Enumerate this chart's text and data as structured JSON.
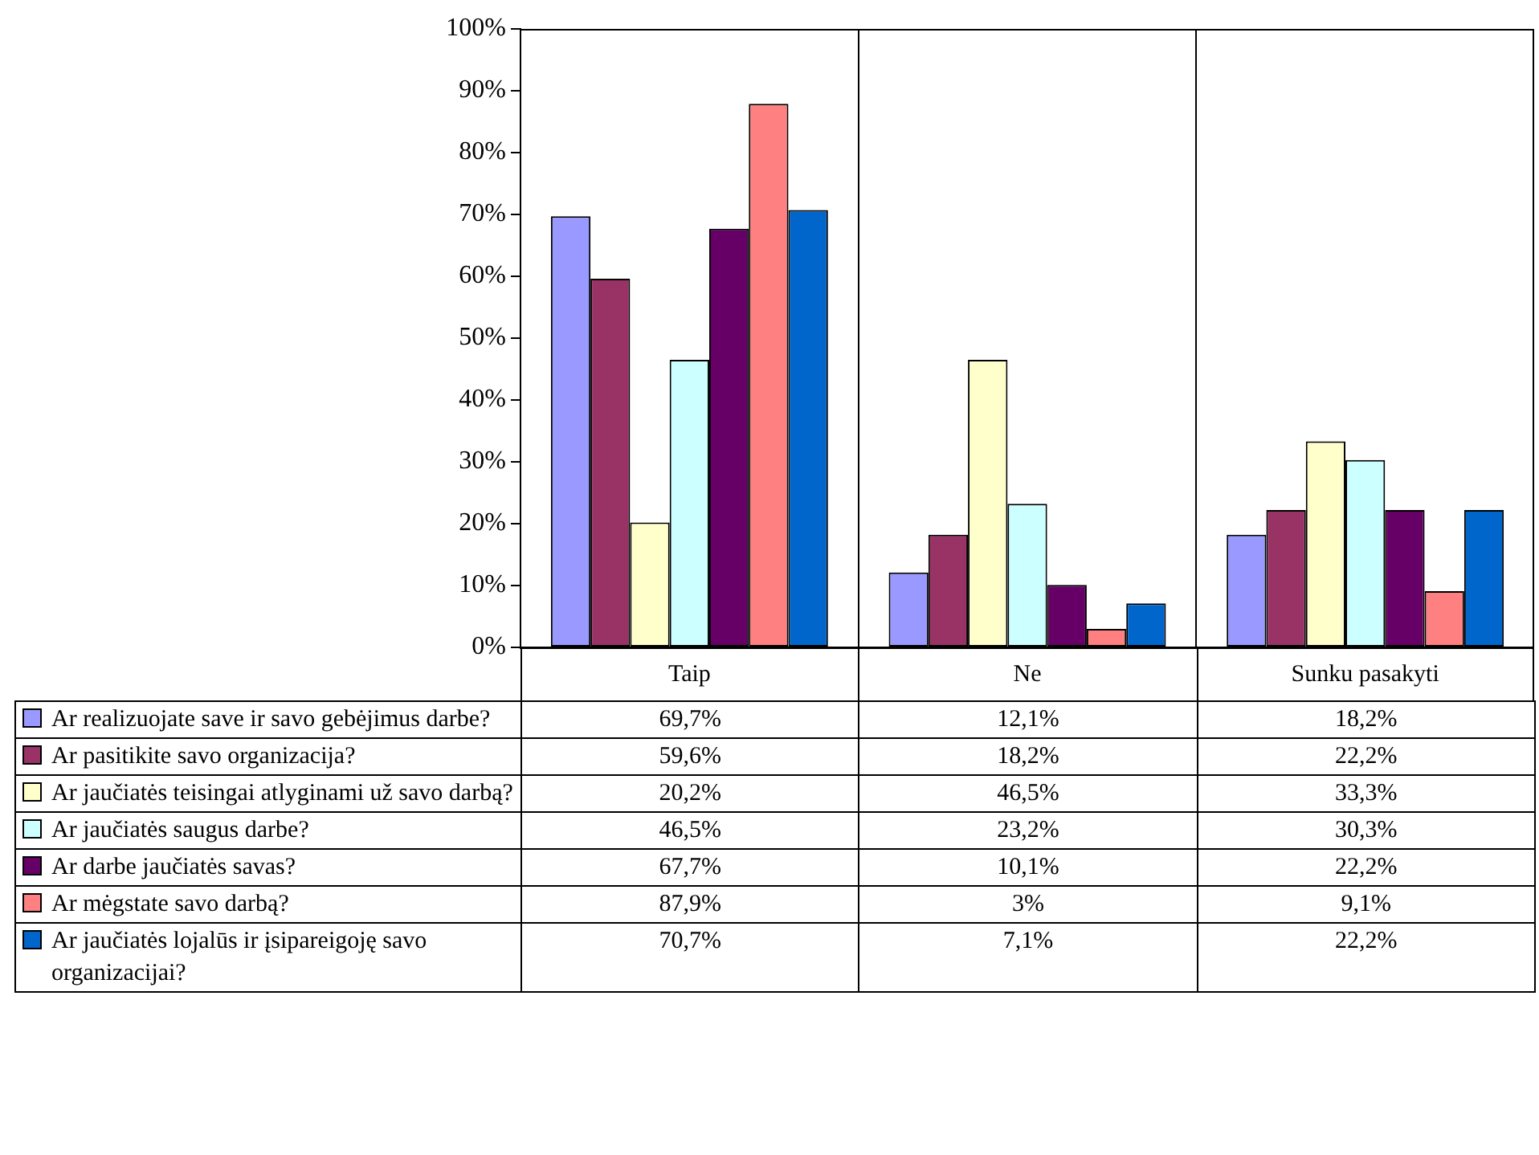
{
  "chart_data": {
    "type": "bar",
    "categories": [
      "Taip",
      "Ne",
      "Sunku pasakyti"
    ],
    "series": [
      {
        "name": "Ar realizuojate save ir savo gebėjimus darbe?",
        "color": "#9999ff",
        "values": [
          69.7,
          12.1,
          18.2
        ],
        "value_labels": [
          "69,7%",
          "12,1%",
          "18,2%"
        ]
      },
      {
        "name": "Ar pasitikite savo organizacija?",
        "color": "#993366",
        "values": [
          59.6,
          18.2,
          22.2
        ],
        "value_labels": [
          "59,6%",
          "18,2%",
          "22,2%"
        ]
      },
      {
        "name": "Ar jaučiatės teisingai atlyginami už savo darbą?",
        "color": "#ffffcc",
        "values": [
          20.2,
          46.5,
          33.3
        ],
        "value_labels": [
          "20,2%",
          "46,5%",
          "33,3%"
        ]
      },
      {
        "name": "Ar jaučiatės saugus darbe?",
        "color": "#ccffff",
        "values": [
          46.5,
          23.2,
          30.3
        ],
        "value_labels": [
          "46,5%",
          "23,2%",
          "30,3%"
        ]
      },
      {
        "name": "Ar darbe jaučiatės savas?",
        "color": "#660066",
        "values": [
          67.7,
          10.1,
          22.2
        ],
        "value_labels": [
          "67,7%",
          "10,1%",
          "22,2%"
        ]
      },
      {
        "name": "Ar mėgstate savo darbą?",
        "color": "#ff8080",
        "values": [
          87.9,
          3,
          9.1
        ],
        "value_labels": [
          "87,9%",
          "3%",
          "9,1%"
        ]
      },
      {
        "name": "Ar jaučiatės lojalūs ir įsipareigoję savo organizacijai?",
        "color": "#0066cc",
        "values": [
          70.7,
          7.1,
          22.2
        ],
        "value_labels": [
          "70,7%",
          "7,1%",
          "22,2%"
        ]
      }
    ],
    "ylim": [
      0,
      100
    ],
    "yticks": [
      {
        "value": 0,
        "label": "0%"
      },
      {
        "value": 10,
        "label": "10%"
      },
      {
        "value": 20,
        "label": "20%"
      },
      {
        "value": 30,
        "label": "30%"
      },
      {
        "value": 40,
        "label": "40%"
      },
      {
        "value": 50,
        "label": "50%"
      },
      {
        "value": 60,
        "label": "60%"
      },
      {
        "value": 70,
        "label": "70%"
      },
      {
        "value": 80,
        "label": "80%"
      },
      {
        "value": 90,
        "label": "90%"
      },
      {
        "value": 100,
        "label": "100%"
      }
    ],
    "grid": "x",
    "legend": "bottom"
  }
}
